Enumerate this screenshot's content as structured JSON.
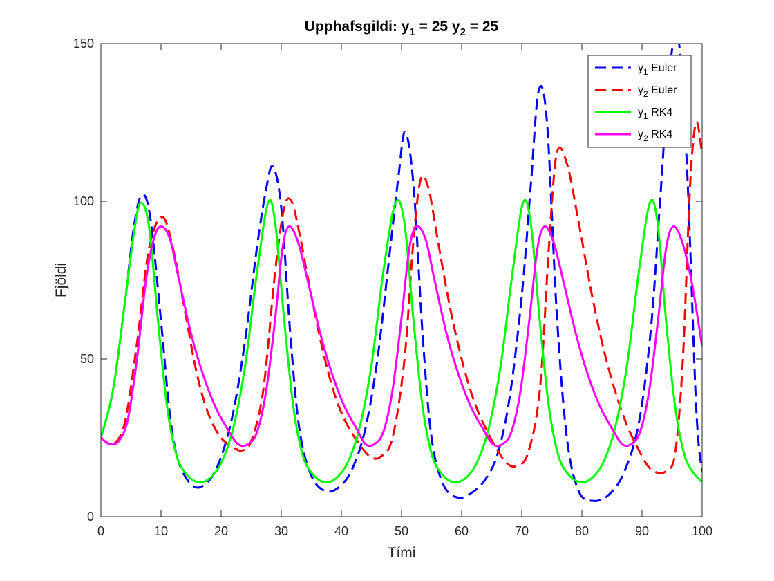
{
  "chart_data": {
    "type": "line",
    "title_parts": {
      "prefix": "Upphafsgildi: y",
      "sub1": "1",
      "mid": " = 25 y",
      "sub2": "2",
      "suffix": " = 25"
    },
    "xlabel": "Tími",
    "ylabel": "Fjöldi",
    "xlim": [
      0,
      100
    ],
    "ylim": [
      0,
      150
    ],
    "xticks": [
      0,
      10,
      20,
      30,
      40,
      50,
      60,
      70,
      80,
      90,
      100
    ],
    "yticks": [
      0,
      50,
      100,
      150
    ],
    "grid": false,
    "legend_position": "top-right",
    "series": [
      {
        "name": "y1 Euler",
        "legend_base": "y",
        "legend_sub": "1",
        "legend_rest": " Euler",
        "color": "#0000ff",
        "style": "dashed",
        "x": [
          0,
          2,
          4,
          5.5,
          6.8,
          8.2,
          10,
          11.5,
          13,
          15.5,
          18,
          20,
          22,
          24,
          26,
          27.5,
          28.6,
          30,
          31.5,
          33,
          35,
          37.5,
          40,
          42,
          44,
          46,
          48,
          49.5,
          50.6,
          52,
          53.5,
          55,
          57,
          59.5,
          62,
          64,
          66,
          68,
          70,
          71.5,
          72.8,
          74.2,
          75.8,
          77.5,
          79.5,
          82,
          84.5,
          87,
          89.5,
          91.5,
          93,
          94.5,
          96,
          97.5,
          99,
          100
        ],
        "y": [
          25,
          40,
          68,
          92,
          102,
          95,
          62,
          32,
          17,
          9.5,
          11.5,
          19,
          33,
          56,
          86,
          104,
          111,
          98,
          58,
          28,
          13,
          8,
          10,
          16,
          28,
          50,
          83,
          108,
          122,
          105,
          58,
          25,
          10,
          6,
          8,
          12,
          20,
          38,
          70,
          105,
          135,
          125,
          65,
          25,
          8,
          5,
          7,
          14,
          30,
          60,
          100,
          140,
          152,
          110,
          35,
          14
        ]
      },
      {
        "name": "y2 Euler",
        "legend_base": "y",
        "legend_sub": "2",
        "legend_rest": " Euler",
        "color": "#ff0000",
        "style": "dashed",
        "x": [
          0,
          2,
          4,
          6,
          8,
          10.2,
          12,
          14,
          16,
          18,
          20,
          22,
          23.5,
          25,
          27,
          29,
          30.5,
          31.7,
          33,
          35,
          37,
          39,
          41,
          43,
          44.8,
          46.5,
          48.5,
          50.5,
          52,
          53.2,
          54.5,
          56,
          58,
          60,
          62,
          64,
          66,
          67.5,
          69,
          71,
          73,
          74.5,
          75.8,
          77.5,
          79.5,
          81.5,
          83.5,
          85.5,
          87.5,
          89.5,
          91,
          92.5,
          94,
          95.5,
          96.8,
          98,
          99,
          100
        ],
        "y": [
          25,
          23,
          30,
          55,
          85,
          95,
          85,
          65,
          45,
          32,
          25,
          22,
          21,
          24,
          40,
          78,
          98,
          100,
          90,
          70,
          52,
          38,
          29,
          23,
          19,
          19,
          25,
          50,
          88,
          107,
          104,
          88,
          67,
          50,
          37,
          28,
          21,
          17,
          16,
          20,
          40,
          85,
          115,
          112,
          93,
          72,
          54,
          40,
          29,
          21,
          16,
          14,
          14.5,
          20,
          50,
          105,
          125,
          115
        ]
      },
      {
        "name": "y1 RK4",
        "legend_base": "y",
        "legend_sub": "1",
        "legend_rest": " RK4",
        "color": "#00ff00",
        "style": "solid",
        "x": [
          0,
          2,
          4,
          5.5,
          6.6,
          8,
          9.5,
          11,
          12.5,
          14,
          16,
          18,
          20,
          22,
          24,
          26,
          27.8,
          29,
          30.5,
          32,
          33.5,
          35,
          37,
          39,
          41,
          43,
          45,
          47,
          49,
          50.5,
          52,
          53.5,
          55,
          56.5,
          58.5,
          60.5,
          62.5,
          64.5,
          66.5,
          68.5,
          70.2,
          71.5,
          73,
          74.5,
          76,
          77.5,
          79.5,
          81.5,
          83.5,
          85.5,
          87.5,
          89.5,
          91.3,
          92.6,
          94,
          95.5,
          97,
          98.5,
          100
        ],
        "y": [
          25,
          40,
          68,
          90,
          99.5,
          92,
          62,
          35,
          20,
          14,
          11,
          12,
          17,
          28,
          48,
          78,
          99.5,
          93,
          62,
          35,
          20,
          14,
          11,
          12,
          17,
          28,
          48,
          78,
          99.5,
          93,
          62,
          35,
          20,
          14,
          11,
          12,
          17,
          28,
          48,
          78,
          99.5,
          93,
          62,
          35,
          20,
          14,
          11,
          12,
          17,
          28,
          48,
          78,
          99.5,
          93,
          62,
          35,
          20,
          14,
          11
        ]
      },
      {
        "name": "y2 RK4",
        "legend_base": "y",
        "legend_sub": "2",
        "legend_rest": " RK4",
        "color": "#ff00ff",
        "style": "solid",
        "x": [
          0,
          1.5,
          3,
          4.5,
          6,
          7.5,
          8.8,
          10,
          11.5,
          13,
          15,
          17,
          19,
          21,
          22.8,
          24.5,
          26,
          27.5,
          29,
          30.2,
          31.3,
          32.8,
          34.5,
          36.5,
          38.5,
          40.5,
          42.5,
          44,
          45.5,
          47,
          48.5,
          50,
          51.3,
          52.5,
          54,
          55.5,
          57.5,
          59.5,
          61.5,
          63.5,
          65.2,
          66.8,
          68.3,
          69.8,
          71.3,
          72.6,
          73.8,
          75.3,
          77,
          79,
          81,
          83,
          85,
          86.7,
          88.2,
          89.7,
          91.2,
          92.7,
          94,
          95.2,
          96.7,
          98.3,
          100
        ],
        "y": [
          25,
          23,
          24,
          31,
          50,
          75,
          88,
          92,
          88,
          75,
          58,
          45,
          35,
          28,
          23,
          23,
          27,
          40,
          63,
          85,
          92,
          87,
          74,
          58,
          45,
          35,
          28,
          23,
          23,
          27,
          40,
          63,
          85,
          92,
          88,
          75,
          58,
          45,
          35,
          28,
          23,
          23,
          27,
          40,
          63,
          85,
          92,
          87,
          74,
          58,
          45,
          35,
          28,
          23,
          23,
          27,
          40,
          63,
          85,
          92,
          87,
          74,
          54
        ]
      }
    ]
  }
}
